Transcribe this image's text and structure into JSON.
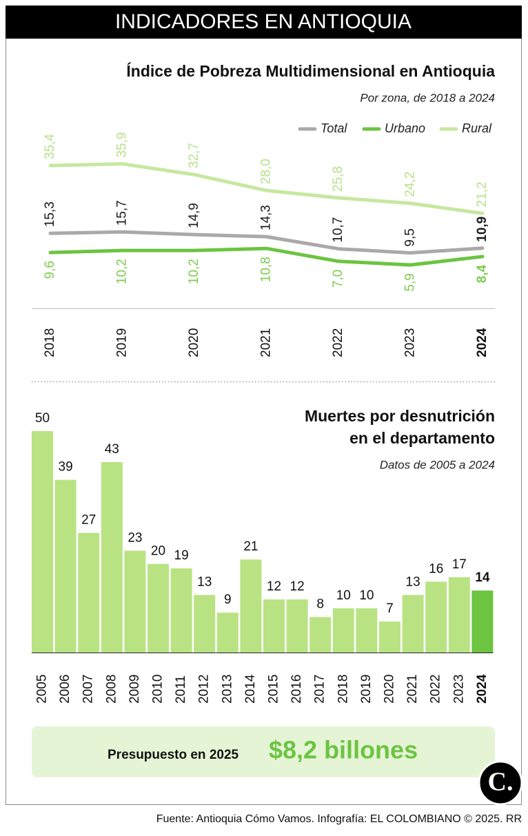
{
  "header": {
    "title": "INDICADORES EN ANTIOQUIA"
  },
  "chart_data": [
    {
      "type": "line",
      "title": "Índice de Pobreza Multidimensional en Antioquia",
      "subtitle": "Por zona, de 2018 a 2024",
      "categories": [
        "2018",
        "2019",
        "2020",
        "2021",
        "2022",
        "2023",
        "2024"
      ],
      "series": [
        {
          "name": "Total",
          "color": "#a9a9a9",
          "label_color": "#1a1a1a",
          "values": [
            15.3,
            15.7,
            14.9,
            14.3,
            10.7,
            9.5,
            10.9
          ],
          "value_labels": [
            "15,3",
            "15,7",
            "14,9",
            "14,3",
            "10,7",
            "9,5",
            "10,9"
          ]
        },
        {
          "name": "Urbano",
          "color": "#6cc441",
          "label_color": "#7ccb4e",
          "values": [
            9.6,
            10.2,
            10.2,
            10.8,
            7.0,
            5.9,
            8.4
          ],
          "value_labels": [
            "9,6",
            "10,2",
            "10,2",
            "10,8",
            "7,0",
            "5,9",
            "8,4"
          ]
        },
        {
          "name": "Rural",
          "color": "#c6e89f",
          "label_color": "#b7e187",
          "values": [
            35.4,
            35.9,
            32.7,
            28.0,
            25.8,
            24.2,
            21.2
          ],
          "value_labels": [
            "35,4",
            "35,9",
            "32,7",
            "28,0",
            "25,8",
            "24,2",
            "21,2"
          ]
        }
      ],
      "ylim": [
        0,
        40
      ],
      "legend": "top-right"
    },
    {
      "type": "bar",
      "title": [
        "Muertes por desnutrición",
        "en el departamento"
      ],
      "subtitle": "Datos de 2005 a 2024",
      "categories": [
        "2005",
        "2006",
        "2007",
        "2008",
        "2009",
        "2010",
        "2011",
        "2012",
        "2013",
        "2014",
        "2015",
        "2016",
        "2017",
        "2018",
        "2019",
        "2020",
        "2021",
        "2022",
        "2023",
        "2024"
      ],
      "values": [
        50,
        39,
        27,
        43,
        23,
        20,
        19,
        13,
        9,
        21,
        12,
        12,
        8,
        10,
        10,
        7,
        13,
        16,
        17,
        14
      ],
      "colors": [
        "#b9e383",
        "#b9e383",
        "#b9e383",
        "#b9e383",
        "#b9e383",
        "#b9e383",
        "#b9e383",
        "#b9e383",
        "#b9e383",
        "#b9e383",
        "#b9e383",
        "#b9e383",
        "#b9e383",
        "#b9e383",
        "#b9e383",
        "#b9e383",
        "#b9e383",
        "#b9e383",
        "#b9e383",
        "#6cc441"
      ],
      "ylim": [
        0,
        50
      ]
    }
  ],
  "budget": {
    "label": "Presupuesto en 2025",
    "amount": "$8,2 billones"
  },
  "logo": {
    "text": "C."
  },
  "footer": {
    "source": "Fuente: Antioquia Cómo Vamos. Infografía: EL COLOMBIANO © 2025. RR"
  }
}
